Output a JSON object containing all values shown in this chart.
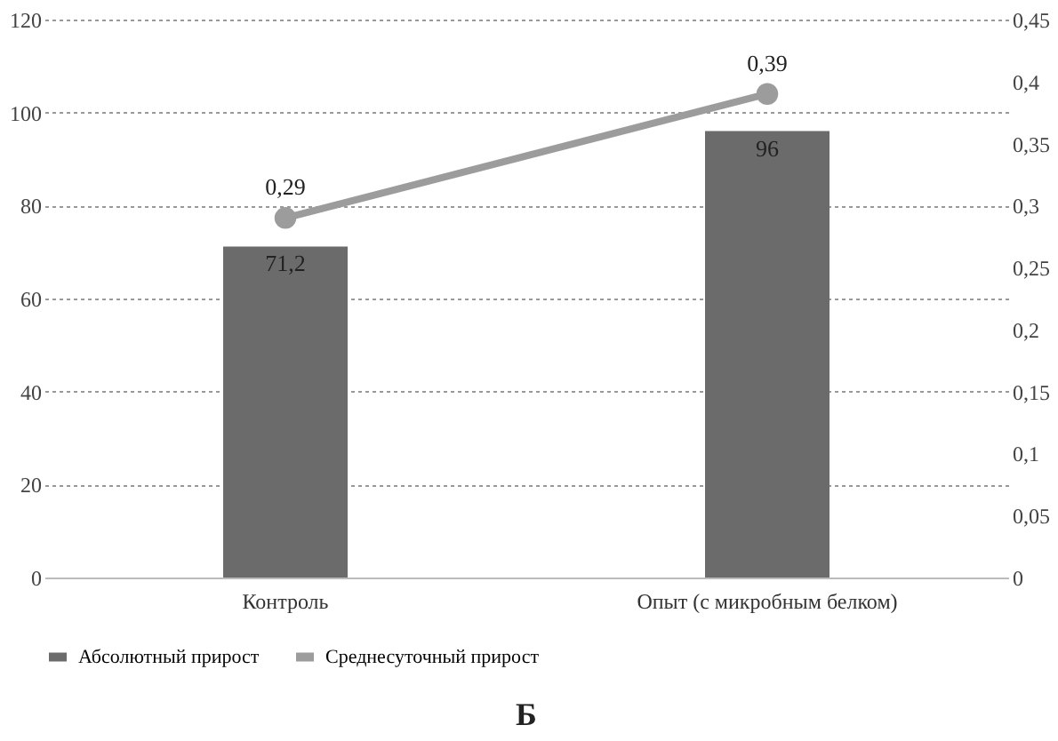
{
  "chart_data": {
    "type": "bar",
    "categories": [
      "Контроль",
      "Опыт (с микробным белком)"
    ],
    "series": [
      {
        "name": "Абсолютный прирост",
        "color": "#6b6b6b",
        "values": [
          71.2,
          96
        ],
        "value_labels": [
          "71,2",
          "96"
        ]
      },
      {
        "name": "Среднесуточный прирост",
        "type": "line",
        "axis": "y2",
        "color": "#9c9c9c",
        "marker": "circle",
        "values": [
          0.29,
          0.39
        ],
        "value_labels": [
          "0,29",
          "0,39"
        ]
      }
    ],
    "ylim": [
      0,
      120
    ],
    "yticks": [
      0,
      20,
      40,
      60,
      80,
      100,
      120
    ],
    "y2lim": [
      0,
      0.45
    ],
    "y2ticks": [
      0,
      {
        "value": 0.05,
        "label": "0,05"
      },
      {
        "value": 0.1,
        "label": "0,1"
      },
      {
        "value": 0.15,
        "label": "0,15"
      },
      {
        "value": 0.2,
        "label": "0,2"
      },
      {
        "value": 0.25,
        "label": "0,25"
      },
      {
        "value": 0.3,
        "label": "0,3"
      },
      {
        "value": 0.35,
        "label": "0,35"
      },
      {
        "value": 0.4,
        "label": "0,4"
      },
      {
        "value": 0.45,
        "label": "0,45"
      }
    ],
    "grid": "y",
    "legend": "bottom",
    "annotations": [
      "Б"
    ]
  }
}
